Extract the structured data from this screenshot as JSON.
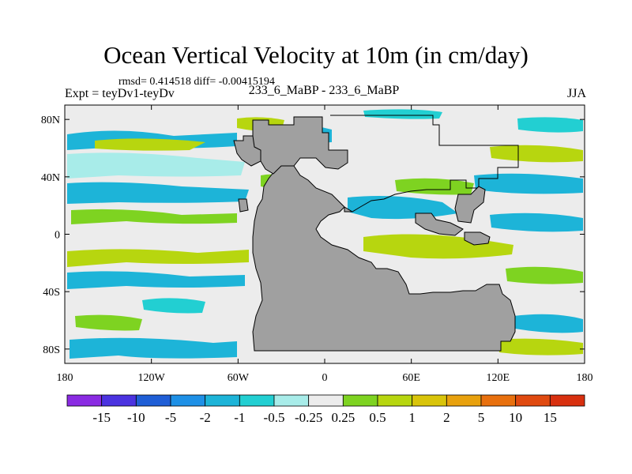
{
  "title": "Ocean Vertical Velocity at 10m (in cm/day)",
  "stats": "rmsd= 0.414518 diff= -0.00415194",
  "experiment": "Expt = teyDv1-teyDv",
  "case_label": "233_6_MaBP - 233_6_MaBP",
  "season": "JJA",
  "lat_axis": [
    {
      "label": "80N",
      "lat": 80
    },
    {
      "label": "40N",
      "lat": 40
    },
    {
      "label": "0",
      "lat": 0
    },
    {
      "label": "40S",
      "lat": -40
    },
    {
      "label": "80S",
      "lat": -80
    }
  ],
  "lon_axis": [
    {
      "label": "180",
      "lon": -180
    },
    {
      "label": "120W",
      "lon": -120
    },
    {
      "label": "60W",
      "lon": -60
    },
    {
      "label": "0",
      "lon": 0
    },
    {
      "label": "60E",
      "lon": 60
    },
    {
      "label": "120E",
      "lon": 120
    },
    {
      "label": "180",
      "lon": 180
    }
  ],
  "colorbar": {
    "colors": [
      "#8a2be2",
      "#4b33e0",
      "#1f5ed6",
      "#1e90e6",
      "#1db4d8",
      "#22cfd2",
      "#a8ece9",
      "#ececec",
      "#7ed321",
      "#b7d60f",
      "#d9c40a",
      "#e8a10d",
      "#e8700e",
      "#e04a10",
      "#d8300f"
    ],
    "labels": [
      "-15",
      "-10",
      "-5",
      "-2",
      "-1",
      "-0.5",
      "-0.25",
      "0.25",
      "0.5",
      "1",
      "2",
      "5",
      "10",
      "15"
    ]
  },
  "land_color": "#a0a0a0",
  "ocean_background": "#ececec"
}
